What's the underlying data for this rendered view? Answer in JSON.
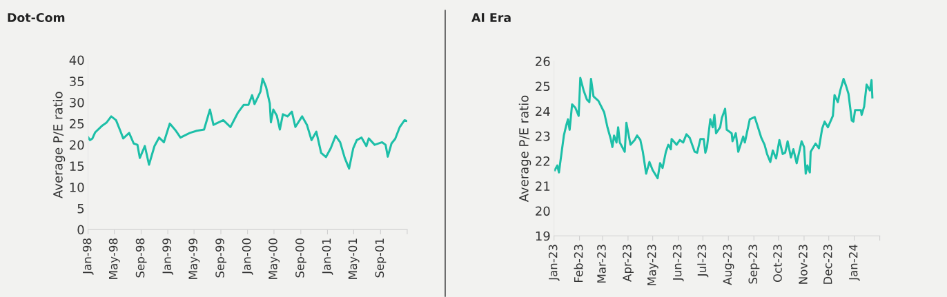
{
  "chart_data": [
    {
      "type": "line",
      "title": "Dot-Com",
      "ylabel": "Average P/E ratio",
      "xlim": [
        "1998-01-01",
        "2002-01-01"
      ],
      "ylim": [
        0,
        40
      ],
      "yticks": [
        0,
        5,
        10,
        15,
        20,
        25,
        30,
        35,
        40
      ],
      "xticks": [
        {
          "value": "1998-01-01",
          "label": "Jan-98"
        },
        {
          "value": "1998-05-01",
          "label": "May-98"
        },
        {
          "value": "1998-09-01",
          "label": "Sep-98"
        },
        {
          "value": "1999-01-01",
          "label": "Jan-99"
        },
        {
          "value": "1999-05-01",
          "label": "May-99"
        },
        {
          "value": "1999-09-01",
          "label": "Sep-99"
        },
        {
          "value": "2000-01-01",
          "label": "Jan-00"
        },
        {
          "value": "2000-05-01",
          "label": "May-00"
        },
        {
          "value": "2000-09-01",
          "label": "Sep-00"
        },
        {
          "value": "2001-01-01",
          "label": "Jan-01"
        },
        {
          "value": "2001-05-01",
          "label": "May-01"
        },
        {
          "value": "2001-09-01",
          "label": "Sep-01"
        },
        {
          "value": "2002-01-01",
          "label": null
        }
      ],
      "grid": false,
      "marker": "none",
      "line_style": "solid",
      "x": [
        "1998-01-01",
        "1998-01-10",
        "1998-01-21",
        "1998-02-02",
        "1998-03-04",
        "1998-03-26",
        "1998-04-17",
        "1998-05-09",
        "1998-05-30",
        "1998-06-11",
        "1998-07-08",
        "1998-07-29",
        "1998-08-15",
        "1998-08-26",
        "1998-09-18",
        "1998-10-07",
        "1998-11-01",
        "1998-11-22",
        "1998-12-14",
        "1999-01-10",
        "1999-02-07",
        "1999-02-28",
        "1999-04-12",
        "1999-05-14",
        "1999-06-16",
        "1999-07-13",
        "1999-07-29",
        "1999-09-12",
        "1999-10-15",
        "1999-11-17",
        "1999-12-14",
        "2000-01-05",
        "2000-01-22",
        "2000-02-02",
        "2000-02-29",
        "2000-03-10",
        "2000-03-26",
        "2000-04-12",
        "2000-04-17",
        "2000-04-28",
        "2000-05-14",
        "2000-05-28",
        "2000-06-11",
        "2000-07-02",
        "2000-07-22",
        "2000-08-07",
        "2000-09-07",
        "2000-09-29",
        "2000-10-20",
        "2000-11-11",
        "2000-12-03",
        "2000-12-25",
        "2001-01-16",
        "2001-02-07",
        "2001-02-28",
        "2001-03-21",
        "2001-04-10",
        "2001-04-29",
        "2001-05-15",
        "2001-06-06",
        "2001-06-28",
        "2001-07-09",
        "2001-08-05",
        "2001-09-08",
        "2001-09-24",
        "2001-10-04",
        "2001-10-21",
        "2001-11-07",
        "2001-11-28",
        "2001-12-20",
        "2001-12-31"
      ],
      "series": [
        {
          "color": "#1dbfa8",
          "values": [
            21.8,
            21.1,
            21.5,
            22.9,
            24.4,
            25.2,
            26.7,
            25.8,
            23.1,
            21.5,
            22.8,
            20.3,
            20,
            16.9,
            19.7,
            15.3,
            19.7,
            21.7,
            20.6,
            25,
            23.3,
            21.7,
            22.8,
            23.3,
            23.6,
            28.3,
            24.7,
            25.8,
            24.2,
            27.5,
            29.4,
            29.4,
            31.7,
            29.6,
            32.5,
            35.6,
            33.6,
            29.7,
            25.3,
            28.3,
            26.9,
            23.6,
            27.2,
            26.7,
            27.8,
            24.2,
            26.7,
            24.7,
            21.1,
            23.1,
            18.1,
            17.1,
            19.2,
            22.1,
            20.6,
            16.9,
            14.4,
            19.2,
            21.1,
            21.7,
            19.7,
            21.5,
            20,
            20.6,
            20,
            17.2,
            20.3,
            21.4,
            24.2,
            25.8,
            25.6
          ]
        }
      ]
    },
    {
      "type": "line",
      "title": "AI Era",
      "ylabel": "Average P/E ratio",
      "xlim": [
        "2023-01-01",
        "2024-02-01"
      ],
      "ylim": [
        19,
        26
      ],
      "yticks": [
        19,
        20,
        21,
        22,
        23,
        24,
        25,
        26
      ],
      "xticks": [
        {
          "value": "2023-01-01",
          "label": "Jan-23"
        },
        {
          "value": "2023-02-01",
          "label": "Feb-23"
        },
        {
          "value": "2023-03-01",
          "label": "Mar-23"
        },
        {
          "value": "2023-04-01",
          "label": "Apr-23"
        },
        {
          "value": "2023-05-01",
          "label": "May-23"
        },
        {
          "value": "2023-06-01",
          "label": "Jun-23"
        },
        {
          "value": "2023-07-01",
          "label": "Jul-23"
        },
        {
          "value": "2023-08-01",
          "label": "Aug-23"
        },
        {
          "value": "2023-09-01",
          "label": "Sep-23"
        },
        {
          "value": "2023-10-01",
          "label": "Oct-23"
        },
        {
          "value": "2023-11-01",
          "label": "Nov-23"
        },
        {
          "value": "2023-12-01",
          "label": "Dec-23"
        },
        {
          "value": "2024-01-01",
          "label": "Jan-24"
        },
        {
          "value": "2024-02-01",
          "label": null
        }
      ],
      "grid": false,
      "marker": "none",
      "line_style": "solid",
      "x": [
        "2023-01-02",
        "2023-01-05",
        "2023-01-07",
        "2023-01-10",
        "2023-01-13",
        "2023-01-16",
        "2023-01-18",
        "2023-01-20",
        "2023-01-21",
        "2023-01-23",
        "2023-01-27",
        "2023-01-31",
        "2023-02-02",
        "2023-02-06",
        "2023-02-10",
        "2023-02-13",
        "2023-02-15",
        "2023-02-18",
        "2023-02-24",
        "2023-03-03",
        "2023-03-07",
        "2023-03-11",
        "2023-03-13",
        "2023-03-15",
        "2023-03-18",
        "2023-03-20",
        "2023-03-22",
        "2023-03-28",
        "2023-03-30",
        "2023-04-04",
        "2023-04-09",
        "2023-04-12",
        "2023-04-16",
        "2023-04-19",
        "2023-04-23",
        "2023-04-27",
        "2023-05-01",
        "2023-05-07",
        "2023-05-10",
        "2023-05-13",
        "2023-05-17",
        "2023-05-20",
        "2023-05-23",
        "2023-05-24",
        "2023-05-30",
        "2023-06-03",
        "2023-06-07",
        "2023-06-11",
        "2023-06-15",
        "2023-06-21",
        "2023-06-24",
        "2023-06-28",
        "2023-07-02",
        "2023-07-04",
        "2023-07-06",
        "2023-07-10",
        "2023-07-13",
        "2023-07-15",
        "2023-07-17",
        "2023-07-22",
        "2023-07-24",
        "2023-07-28",
        "2023-07-30",
        "2023-08-05",
        "2023-08-06",
        "2023-08-10",
        "2023-08-13",
        "2023-08-19",
        "2023-08-21",
        "2023-08-27",
        "2023-09-02",
        "2023-09-06",
        "2023-09-10",
        "2023-09-14",
        "2023-09-17",
        "2023-09-21",
        "2023-09-24",
        "2023-09-28",
        "2023-10-02",
        "2023-10-06",
        "2023-10-09",
        "2023-10-12",
        "2023-10-16",
        "2023-10-19",
        "2023-10-23",
        "2023-10-29",
        "2023-11-01",
        "2023-11-03",
        "2023-11-05",
        "2023-11-08",
        "2023-11-09",
        "2023-11-15",
        "2023-11-19",
        "2023-11-23",
        "2023-11-26",
        "2023-11-30",
        "2023-12-06",
        "2023-12-08",
        "2023-12-12",
        "2023-12-15",
        "2023-12-19",
        "2023-12-22",
        "2023-12-25",
        "2023-12-29",
        "2023-12-31",
        "2024-01-02",
        "2024-01-09",
        "2024-01-10",
        "2024-01-13",
        "2024-01-16",
        "2024-01-20",
        "2024-01-22",
        "2024-01-23"
      ],
      "series": [
        {
          "color": "#1dbfa8",
          "values": [
            21.63,
            21.82,
            21.54,
            22.28,
            23.02,
            23.44,
            23.67,
            23.25,
            23.58,
            24.27,
            24.13,
            23.81,
            25.33,
            24.83,
            24.46,
            24.36,
            25.29,
            24.59,
            24.41,
            23.95,
            23.35,
            22.88,
            22.56,
            23.02,
            22.74,
            23.35,
            22.74,
            22.37,
            23.53,
            22.65,
            22.84,
            23.02,
            22.84,
            22.37,
            21.49,
            21.96,
            21.63,
            21.31,
            21.91,
            21.72,
            22.37,
            22.65,
            22.47,
            22.88,
            22.65,
            22.84,
            22.74,
            23.07,
            22.93,
            22.37,
            22.33,
            22.88,
            22.88,
            22.33,
            22.56,
            23.67,
            23.35,
            23.85,
            23.11,
            23.35,
            23.72,
            24.09,
            23.25,
            23.11,
            22.79,
            23.11,
            22.37,
            22.98,
            22.74,
            23.67,
            23.76,
            23.35,
            22.93,
            22.65,
            22.28,
            21.96,
            22.42,
            22.1,
            22.84,
            22.28,
            22.33,
            22.79,
            22.14,
            22.47,
            21.91,
            22.79,
            22.56,
            21.49,
            21.82,
            21.54,
            22.37,
            22.7,
            22.51,
            23.3,
            23.58,
            23.35,
            23.81,
            24.64,
            24.36,
            24.83,
            25.29,
            25.01,
            24.69,
            23.62,
            23.58,
            24.04,
            24.04,
            23.85,
            24.18,
            25.06,
            24.83,
            25.24,
            24.55
          ]
        }
      ]
    }
  ]
}
